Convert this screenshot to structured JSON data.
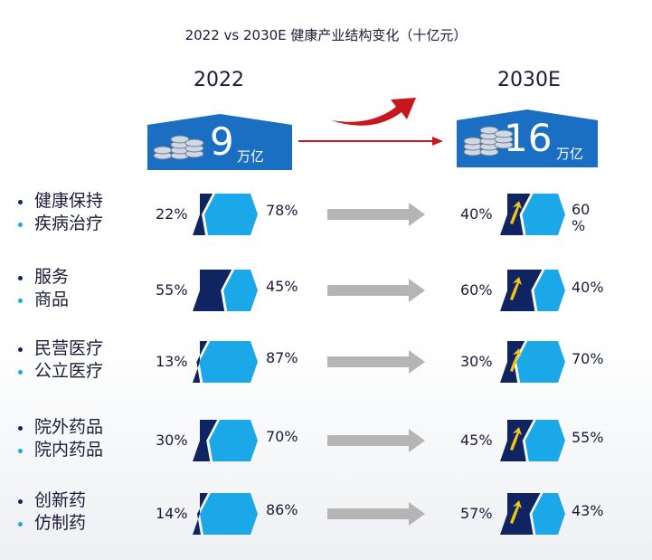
{
  "title": "2022 vs 2030E 健康产业结构变化（十亿元）",
  "colors": {
    "dark": "#0f2460",
    "light": "#1aa8e8",
    "box": "#1a6fc2",
    "arrow_gray": "#b5b5b5",
    "arrow_red": "#c8161d",
    "up_arrow": "#f0c419"
  },
  "years": {
    "left": "2022",
    "right": "2030E"
  },
  "totals": {
    "left": {
      "value": "9",
      "unit": "万亿"
    },
    "right": {
      "value": "16",
      "unit": "万亿"
    }
  },
  "chart_data": {
    "type": "bar",
    "categories": [
      [
        "健康保持",
        "疾病治疗"
      ],
      [
        "服务",
        "商品"
      ],
      [
        "民营医疗",
        "公立医疗"
      ],
      [
        "院外药品",
        "院内药品"
      ],
      [
        "创新药",
        "仿制药"
      ]
    ],
    "series": [
      {
        "name": "2022",
        "values": [
          [
            22,
            78
          ],
          [
            55,
            45
          ],
          [
            13,
            87
          ],
          [
            30,
            70
          ],
          [
            14,
            86
          ]
        ]
      },
      {
        "name": "2030E",
        "values": [
          [
            40,
            60
          ],
          [
            60,
            40
          ],
          [
            30,
            70
          ],
          [
            45,
            55
          ],
          [
            57,
            43
          ]
        ]
      }
    ],
    "rows": [
      {
        "top": "健康保持",
        "bottom": "疾病治疗",
        "l_a": "22%",
        "l_b": "78%",
        "r_a": "40%",
        "r_b": "60\n%"
      },
      {
        "top": "服务",
        "bottom": "商品",
        "l_a": "55%",
        "l_b": "45%",
        "r_a": "60%",
        "r_b": "40%"
      },
      {
        "top": "民营医疗",
        "bottom": "公立医疗",
        "l_a": "13%",
        "l_b": "87%",
        "r_a": "30%",
        "r_b": "70%"
      },
      {
        "top": "院外药品",
        "bottom": "院内药品",
        "l_a": "30%",
        "l_b": "70%",
        "r_a": "45%",
        "r_b": "55%"
      },
      {
        "top": "创新药",
        "bottom": "仿制药",
        "l_a": "14%",
        "l_b": "86%",
        "r_a": "57%",
        "r_b": "43%"
      }
    ]
  }
}
